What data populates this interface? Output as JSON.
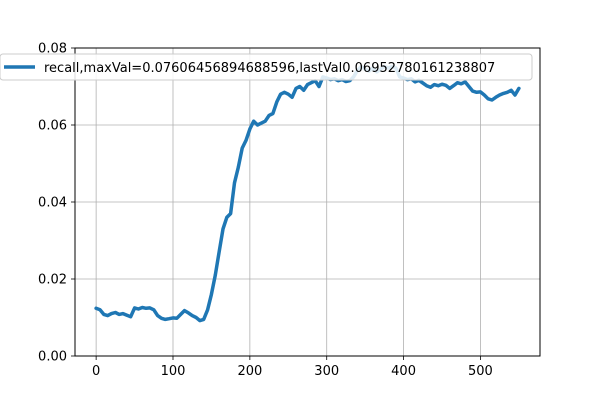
{
  "chart_data": {
    "type": "line",
    "title": "",
    "xlabel": "",
    "ylabel": "",
    "xlim": [
      -27.5,
      577.5
    ],
    "ylim": [
      0.0,
      0.08
    ],
    "xticks": [
      0,
      100,
      200,
      300,
      400,
      500
    ],
    "xtick_labels": [
      "0",
      "100",
      "200",
      "300",
      "400",
      "500"
    ],
    "yticks": [
      0.0,
      0.02,
      0.04,
      0.06,
      0.08
    ],
    "ytick_labels": [
      "0.00",
      "0.02",
      "0.04",
      "0.06",
      "0.08"
    ],
    "grid": true,
    "legend_position": "top-left",
    "series": [
      {
        "name": "recall,maxVal=0.07606456894688596,lastVal0.06952780161238807",
        "color": "#1f77b4",
        "x": [
          0,
          5,
          10,
          15,
          20,
          25,
          30,
          35,
          40,
          45,
          50,
          55,
          60,
          65,
          70,
          75,
          80,
          85,
          90,
          95,
          100,
          105,
          110,
          115,
          120,
          125,
          130,
          135,
          140,
          145,
          150,
          155,
          160,
          165,
          170,
          175,
          180,
          185,
          190,
          195,
          200,
          205,
          210,
          215,
          220,
          225,
          230,
          235,
          240,
          245,
          250,
          255,
          260,
          265,
          270,
          275,
          280,
          285,
          290,
          295,
          300,
          305,
          310,
          315,
          320,
          325,
          330,
          335,
          340,
          345,
          350,
          355,
          360,
          365,
          370,
          375,
          380,
          385,
          390,
          395,
          400,
          405,
          410,
          415,
          420,
          425,
          430,
          435,
          440,
          445,
          450,
          455,
          460,
          465,
          470,
          475,
          480,
          485,
          490,
          495,
          500,
          505,
          510,
          515,
          520,
          525,
          530,
          535,
          540,
          545,
          550
        ],
        "values": [
          0.0124,
          0.012,
          0.0108,
          0.0105,
          0.011,
          0.0113,
          0.0108,
          0.011,
          0.0106,
          0.0102,
          0.0125,
          0.0122,
          0.0126,
          0.0124,
          0.0125,
          0.012,
          0.0105,
          0.0098,
          0.0095,
          0.0097,
          0.0099,
          0.0098,
          0.0108,
          0.0118,
          0.0112,
          0.0105,
          0.01,
          0.0092,
          0.0095,
          0.012,
          0.016,
          0.021,
          0.027,
          0.033,
          0.036,
          0.037,
          0.045,
          0.049,
          0.054,
          0.056,
          0.059,
          0.061,
          0.06,
          0.0605,
          0.061,
          0.0625,
          0.063,
          0.066,
          0.068,
          0.0685,
          0.068,
          0.0672,
          0.0695,
          0.07,
          0.069,
          0.0705,
          0.071,
          0.0715,
          0.07,
          0.0725,
          0.0722,
          0.0718,
          0.072,
          0.0715,
          0.0718,
          0.0713,
          0.0715,
          0.0725,
          0.0742,
          0.0752,
          0.0745,
          0.074,
          0.0748,
          0.0738,
          0.0745,
          0.0752,
          0.0748,
          0.0752,
          0.0748,
          0.0725,
          0.0722,
          0.0718,
          0.072,
          0.0712,
          0.0716,
          0.0709,
          0.0702,
          0.0698,
          0.0705,
          0.0702,
          0.0706,
          0.0703,
          0.0695,
          0.0702,
          0.071,
          0.0707,
          0.0712,
          0.07,
          0.0688,
          0.0685,
          0.0686,
          0.0678,
          0.0668,
          0.0665,
          0.0672,
          0.0678,
          0.0682,
          0.0685,
          0.069,
          0.0678,
          0.0695
        ]
      }
    ]
  }
}
